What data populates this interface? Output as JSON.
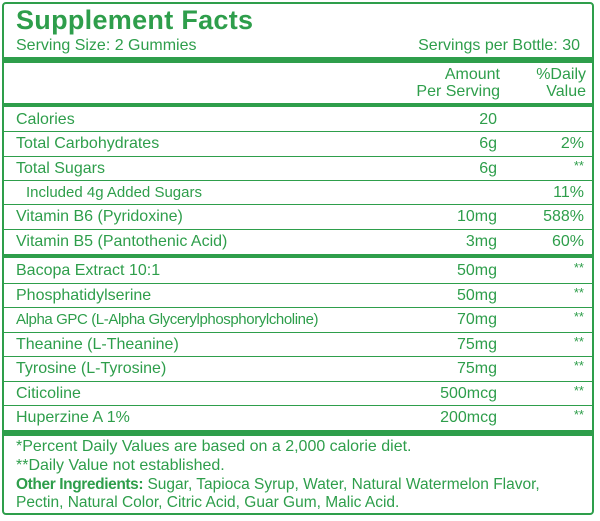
{
  "title": "Supplement Facts",
  "serving_size": "Serving Size: 2 Gummies",
  "servings_per_container": "Servings per Bottle: 30",
  "columns": {
    "amount_line1": "Amount",
    "amount_line2": "Per Serving",
    "dv_line1": "%Daily",
    "dv_line2": "Value"
  },
  "nutrients": [
    {
      "name": "Calories",
      "amount": "20",
      "dv": ""
    },
    {
      "name": "Total Carbohydrates",
      "amount": "6g",
      "dv": "2%"
    },
    {
      "name": "Total Sugars",
      "amount": "6g",
      "dv": "**"
    },
    {
      "name": "Included 4g Added Sugars",
      "amount": "",
      "dv": "11%"
    },
    {
      "name": "Vitamin B6 (Pyridoxine)",
      "amount": "10mg",
      "dv": "588%"
    },
    {
      "name": "Vitamin B5 (Pantothenic Acid)",
      "amount": "3mg",
      "dv": "60%"
    }
  ],
  "actives": [
    {
      "name": "Bacopa Extract 10:1",
      "amount": "50mg",
      "dv": "**"
    },
    {
      "name": "Phosphatidylserine",
      "amount": "50mg",
      "dv": "**"
    },
    {
      "name": "Alpha GPC (L-Alpha Glycerylphosphorylcholine)",
      "amount": "70mg",
      "dv": "**"
    },
    {
      "name": "Theanine (L-Theanine)",
      "amount": "75mg",
      "dv": "**"
    },
    {
      "name": "Tyrosine (L-Tyrosine)",
      "amount": "75mg",
      "dv": "**"
    },
    {
      "name": "Citicoline",
      "amount": "500mcg",
      "dv": "**"
    },
    {
      "name": "Huperzine A 1%",
      "amount": "200mcg",
      "dv": "**"
    }
  ],
  "footnote_dv": "*Percent Daily Values are based on a 2,000 calorie diet.",
  "footnote_not_established": "**Daily Value not established.",
  "other_ingredients_label": "Other Ingredients:",
  "other_ingredients": " Sugar, Tapioca Syrup, Water, Natural Watermelon Flavor, Pectin, Natural Color, Citric Acid, Guar Gum, Malic Acid.",
  "colors": {
    "brand_green": "#2e9e4b",
    "background": "#ffffff"
  }
}
